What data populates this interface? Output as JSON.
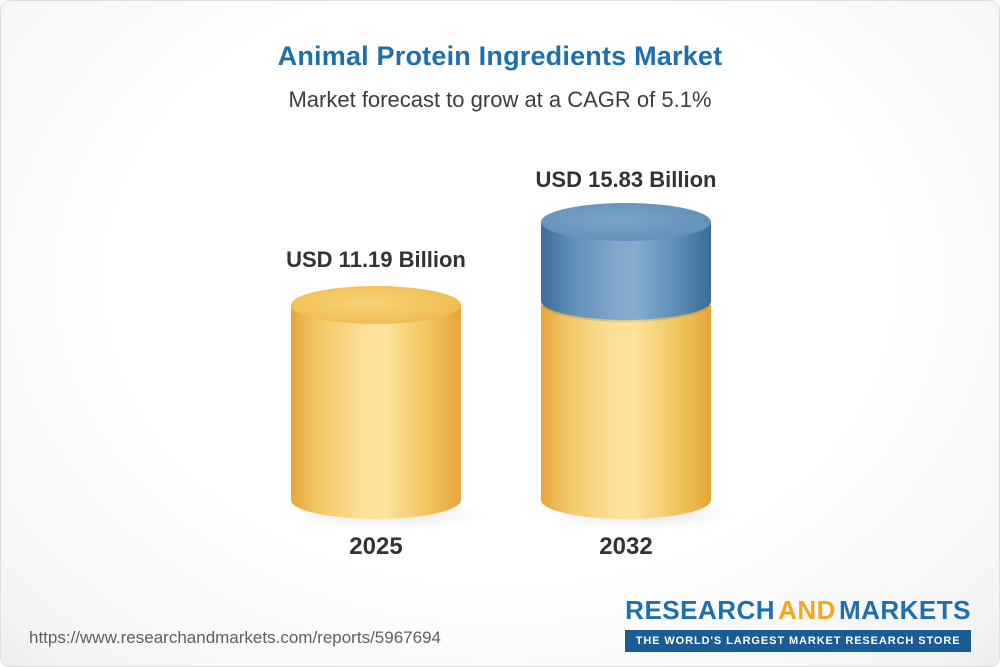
{
  "header": {
    "title": "Animal Protein Ingredients Market",
    "subtitle": "Market forecast to grow at a CAGR of 5.1%"
  },
  "chart_data": {
    "type": "bar",
    "title": "Animal Protein Ingredients Market",
    "subtitle": "Market forecast to grow at a CAGR of 5.1%",
    "unit": "USD Billion",
    "cagr_percent": 5.1,
    "categories": [
      "2025",
      "2032"
    ],
    "values": [
      11.19,
      15.83
    ],
    "value_labels": [
      "USD 11.19 Billion",
      "USD 15.83 Billion"
    ],
    "series_note": "2032 bar shows 2025 base in yellow plus growth increment in blue",
    "colors": {
      "base_segment": "#f2c55f",
      "growth_segment": "#6392ba",
      "title": "#1e6fae"
    },
    "legend": "off",
    "grid": "off"
  },
  "footer": {
    "source_url": "https://www.researchandmarkets.com/reports/5967694",
    "logo": {
      "word1": "RESEARCH",
      "word2": "AND",
      "word3": "MARKETS",
      "tagline": "THE WORLD'S LARGEST MARKET RESEARCH STORE"
    }
  }
}
